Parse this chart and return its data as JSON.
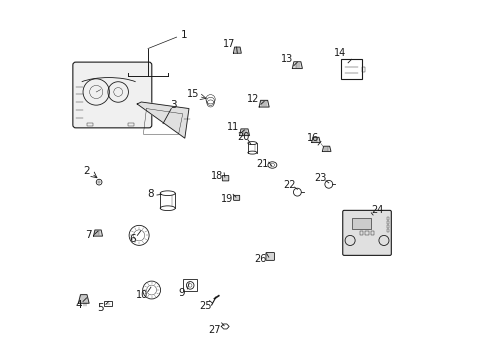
{
  "title": "",
  "bg_color": "#ffffff",
  "line_color": "#1a1a1a",
  "fig_width": 4.89,
  "fig_height": 3.6,
  "dpi": 100
}
